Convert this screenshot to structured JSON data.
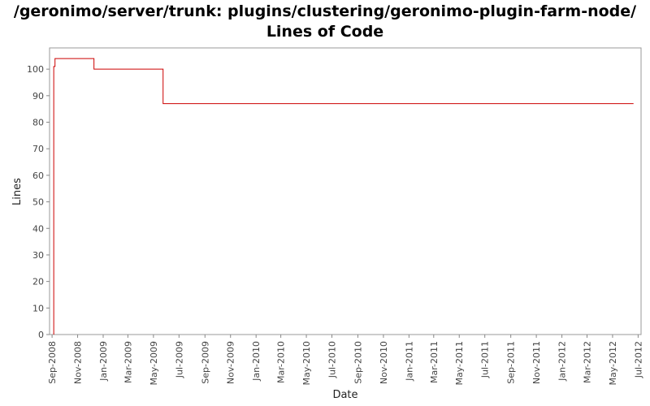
{
  "chart_data": {
    "type": "line",
    "line_style": "step",
    "title_line1": "/geronimo/server/trunk: plugins/clustering/geronimo-plugin-farm-node/",
    "title_line2": "Lines of Code",
    "xlabel": "Date",
    "ylabel": "Lines",
    "ylim": [
      0,
      108
    ],
    "xlim": [
      "2008-08-26",
      "2012-07-08"
    ],
    "y_ticks": [
      0,
      10,
      20,
      30,
      40,
      50,
      60,
      70,
      80,
      90,
      100
    ],
    "x_ticks": [
      {
        "date": "2008-09-01",
        "label": "Sep-2008"
      },
      {
        "date": "2008-11-01",
        "label": "Nov-2008"
      },
      {
        "date": "2009-01-01",
        "label": "Jan-2009"
      },
      {
        "date": "2009-03-01",
        "label": "Mar-2009"
      },
      {
        "date": "2009-05-01",
        "label": "May-2009"
      },
      {
        "date": "2009-07-01",
        "label": "Jul-2009"
      },
      {
        "date": "2009-09-01",
        "label": "Sep-2009"
      },
      {
        "date": "2009-11-01",
        "label": "Nov-2009"
      },
      {
        "date": "2010-01-01",
        "label": "Jan-2010"
      },
      {
        "date": "2010-03-01",
        "label": "Mar-2010"
      },
      {
        "date": "2010-05-01",
        "label": "May-2010"
      },
      {
        "date": "2010-07-01",
        "label": "Jul-2010"
      },
      {
        "date": "2010-09-01",
        "label": "Sep-2010"
      },
      {
        "date": "2010-11-01",
        "label": "Nov-2010"
      },
      {
        "date": "2011-01-01",
        "label": "Jan-2011"
      },
      {
        "date": "2011-03-01",
        "label": "Mar-2011"
      },
      {
        "date": "2011-05-01",
        "label": "May-2011"
      },
      {
        "date": "2011-07-01",
        "label": "Jul-2011"
      },
      {
        "date": "2011-09-01",
        "label": "Sep-2011"
      },
      {
        "date": "2011-11-01",
        "label": "Nov-2011"
      },
      {
        "date": "2012-01-01",
        "label": "Jan-2012"
      },
      {
        "date": "2012-03-01",
        "label": "Mar-2012"
      },
      {
        "date": "2012-05-01",
        "label": "May-2012"
      },
      {
        "date": "2012-07-01",
        "label": "Jul-2012"
      }
    ],
    "series": [
      {
        "color": "#cc0000",
        "points": [
          {
            "x": "2008-09-05",
            "y": 0
          },
          {
            "x": "2008-09-05",
            "y": 101
          },
          {
            "x": "2008-09-08",
            "y": 104
          },
          {
            "x": "2008-12-10",
            "y": 100
          },
          {
            "x": "2009-05-24",
            "y": 87
          },
          {
            "x": "2012-06-20",
            "y": 87
          }
        ]
      }
    ],
    "grid": false,
    "legend": "none"
  }
}
